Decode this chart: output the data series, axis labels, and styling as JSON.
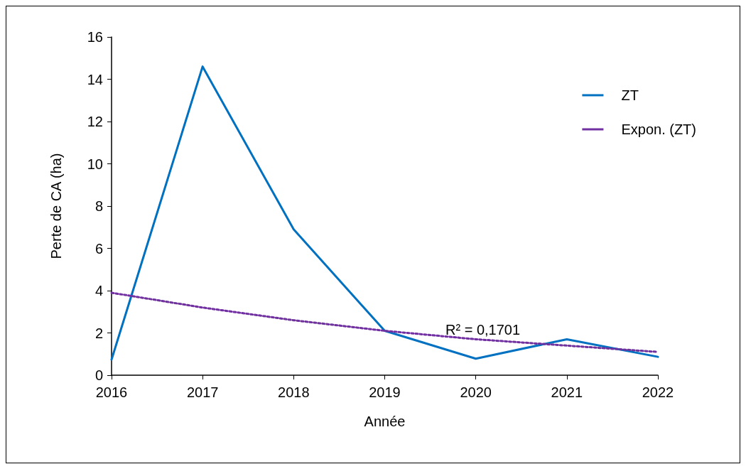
{
  "chart_data": {
    "type": "line",
    "xlabel": "Année",
    "ylabel": "Perte de CA (ha)",
    "categories": [
      "2016",
      "2017",
      "2018",
      "2019",
      "2020",
      "2021",
      "2022"
    ],
    "series": [
      {
        "name": "ZT",
        "color": "#0070c0",
        "line_style": "solid",
        "values": [
          0.74,
          14.6,
          6.9,
          2.1,
          0.78,
          1.7,
          0.87
        ]
      },
      {
        "name": "Expon. (ZT)",
        "color": "#7030a0",
        "line_style": "dotted",
        "values": [
          3.9,
          3.2,
          2.6,
          2.1,
          1.7,
          1.4,
          1.1
        ]
      }
    ],
    "ylim": [
      0,
      16
    ],
    "yticks": [
      0,
      2,
      4,
      6,
      8,
      10,
      12,
      14,
      16
    ],
    "grid": false,
    "legend": "top right",
    "marker": "none",
    "annotations": [
      "R² = 0,1701"
    ]
  }
}
